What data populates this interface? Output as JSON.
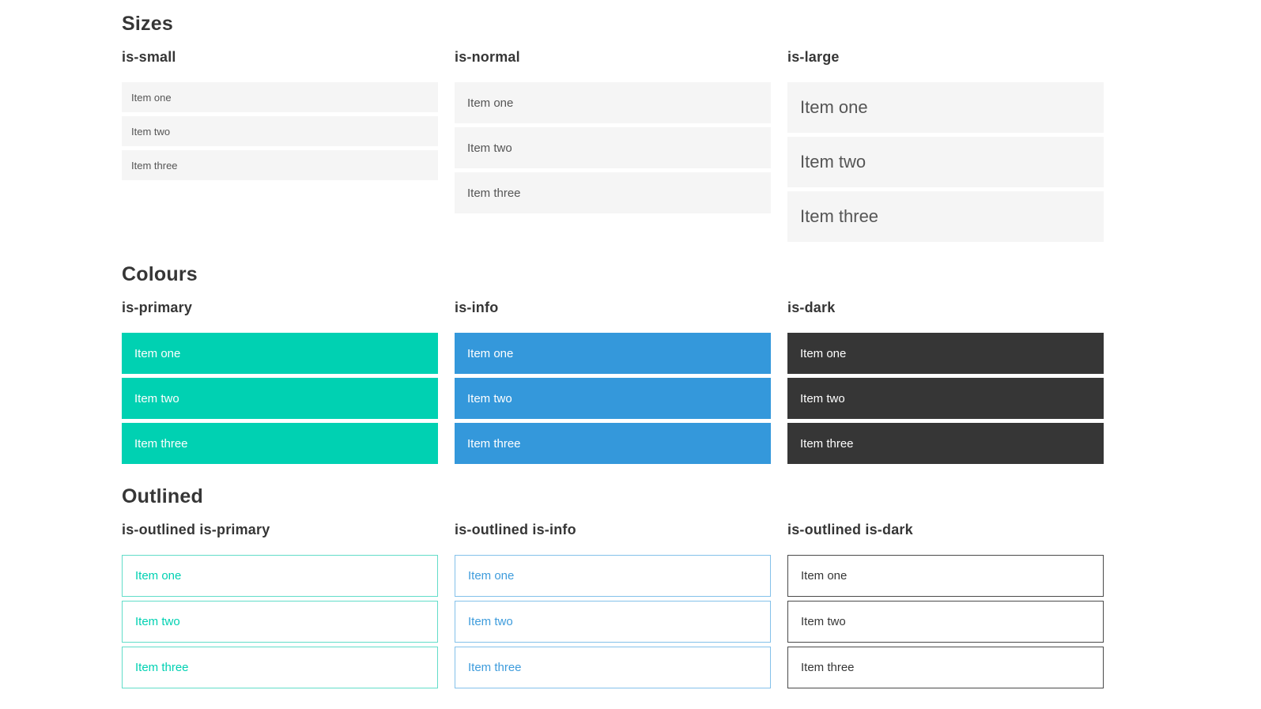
{
  "colors": {
    "heading": "#363636",
    "item_bg": "#f5f5f5",
    "item_text": "#555555",
    "on_color": "#ffffff",
    "primary": "#00d1b2",
    "primary_border": "#62ddc9",
    "info": "#3498db",
    "info_text": "#3e9cdc",
    "info_border": "#84c1ea",
    "dark": "#363636",
    "dark_border": "#4a4a4a"
  },
  "sections": [
    {
      "title": "Sizes",
      "groups": [
        {
          "label": "is-small",
          "items": [
            "Item one",
            "Item two",
            "Item three"
          ]
        },
        {
          "label": "is-normal",
          "items": [
            "Item one",
            "Item two",
            "Item three"
          ]
        },
        {
          "label": "is-large",
          "items": [
            "Item one",
            "Item two",
            "Item three"
          ]
        }
      ]
    },
    {
      "title": "Colours",
      "groups": [
        {
          "label": "is-primary",
          "items": [
            "Item one",
            "Item two",
            "Item three"
          ]
        },
        {
          "label": "is-info",
          "items": [
            "Item one",
            "Item two",
            "Item three"
          ]
        },
        {
          "label": "is-dark",
          "items": [
            "Item one",
            "Item two",
            "Item three"
          ]
        }
      ]
    },
    {
      "title": "Outlined",
      "groups": [
        {
          "label": "is-outlined is-primary",
          "items": [
            "Item one",
            "Item two",
            "Item three"
          ]
        },
        {
          "label": "is-outlined is-info",
          "items": [
            "Item one",
            "Item two",
            "Item three"
          ]
        },
        {
          "label": "is-outlined is-dark",
          "items": [
            "Item one",
            "Item two",
            "Item three"
          ]
        }
      ]
    }
  ]
}
